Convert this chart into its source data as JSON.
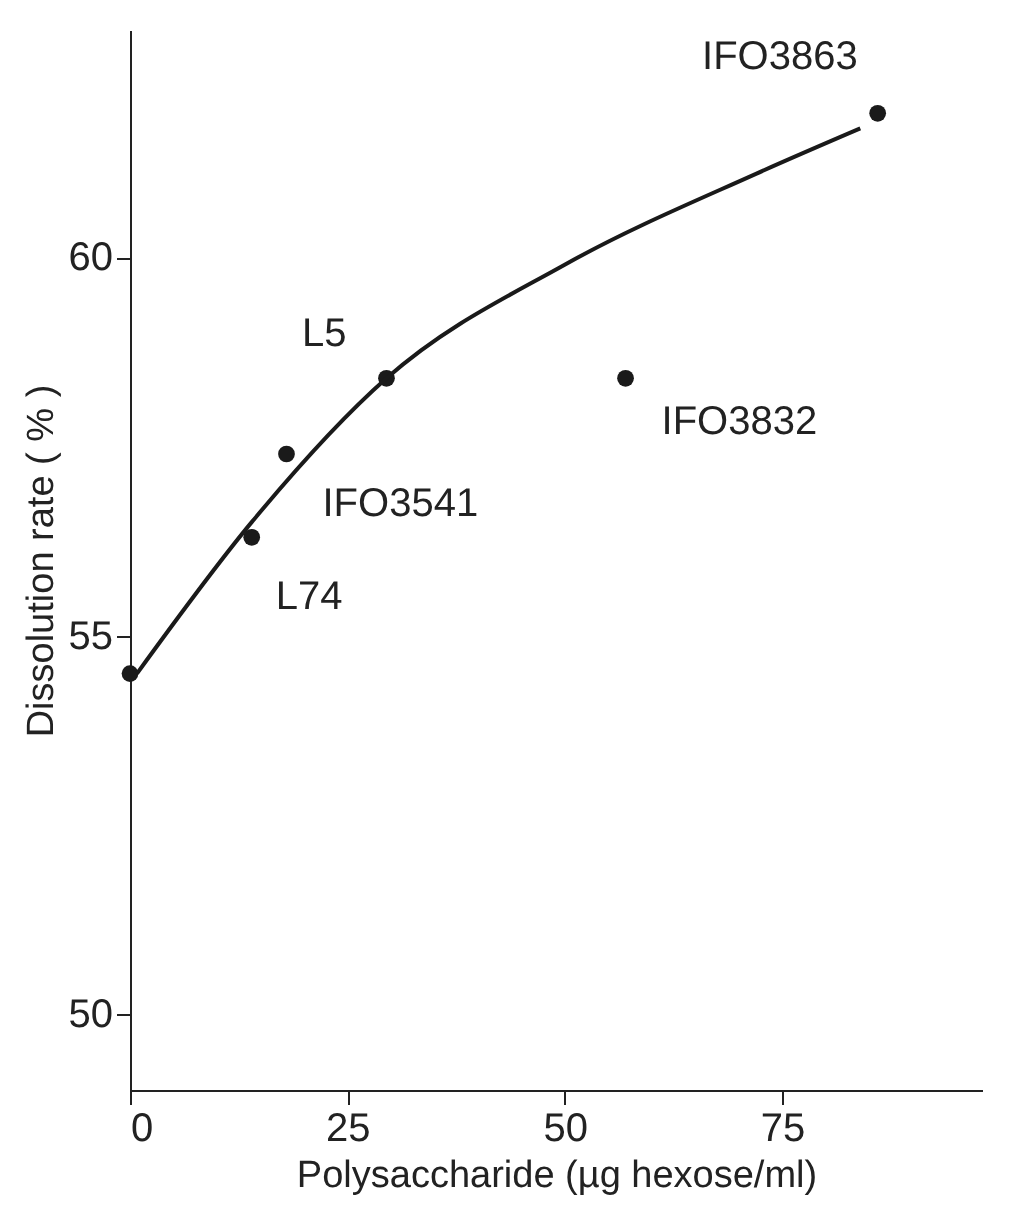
{
  "chart_data": {
    "type": "scatter",
    "xlabel": "Polysaccharide (µg hexose/ml)",
    "ylabel": "Dissolution rate ( % )",
    "xlim": [
      0,
      98
    ],
    "xticks": [
      0,
      25,
      50,
      75
    ],
    "ylim": [
      49,
      63
    ],
    "yticks": [
      50,
      55,
      60
    ],
    "grid": false,
    "series": [
      {
        "color": "#1a1a1a",
        "marker": "circle",
        "x": [
          0,
          14,
          18,
          29.5,
          57,
          86
        ],
        "values": [
          54.5,
          56.3,
          57.4,
          58.4,
          58.4,
          61.9
        ]
      },
      {
        "type": "line",
        "color": "#1a1a1a",
        "line_style": "solid",
        "x": [
          0.8,
          14,
          29.5,
          50,
          72,
          84
        ],
        "values": [
          54.5,
          56.5,
          58.4,
          59.9,
          61.1,
          61.7
        ]
      }
    ],
    "annotations": [
      {
        "text": "IFO3863",
        "x": 86,
        "y": 61.9
      },
      {
        "text": "L5",
        "x": 29.5,
        "y": 58.4
      },
      {
        "text": "IFO3832",
        "x": 57,
        "y": 58.4
      },
      {
        "text": "IFO3541",
        "x": 18,
        "y": 57.4
      },
      {
        "text": "L74",
        "x": 14,
        "y": 56.3
      }
    ]
  }
}
